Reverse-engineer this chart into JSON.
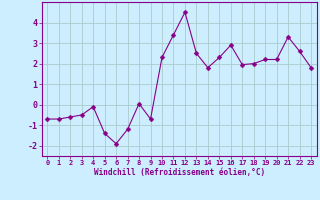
{
  "x": [
    0,
    1,
    2,
    3,
    4,
    5,
    6,
    7,
    8,
    9,
    10,
    11,
    12,
    13,
    14,
    15,
    16,
    17,
    18,
    19,
    20,
    21,
    22,
    23
  ],
  "y": [
    -0.7,
    -0.7,
    -0.6,
    -0.5,
    -0.1,
    -1.4,
    -1.9,
    -1.2,
    0.05,
    -0.7,
    2.3,
    3.4,
    4.5,
    2.5,
    1.8,
    2.3,
    2.9,
    1.95,
    2.0,
    2.2,
    2.2,
    3.3,
    2.6,
    1.8
  ],
  "line_color": "#880088",
  "marker": "D",
  "marker_size": 2.5,
  "bg_color": "#cceeff",
  "grid_color": "#aacccc",
  "xlabel": "Windchill (Refroidissement éolien,°C)",
  "xlabel_color": "#880088",
  "tick_color": "#880088",
  "ylim": [
    -2.5,
    5.0
  ],
  "xlim": [
    -0.5,
    23.5
  ],
  "yticks": [
    -2,
    -1,
    0,
    1,
    2,
    3,
    4
  ],
  "xticks": [
    0,
    1,
    2,
    3,
    4,
    5,
    6,
    7,
    8,
    9,
    10,
    11,
    12,
    13,
    14,
    15,
    16,
    17,
    18,
    19,
    20,
    21,
    22,
    23
  ],
  "spine_color": "#880088",
  "figsize": [
    3.2,
    2.0
  ],
  "dpi": 100
}
